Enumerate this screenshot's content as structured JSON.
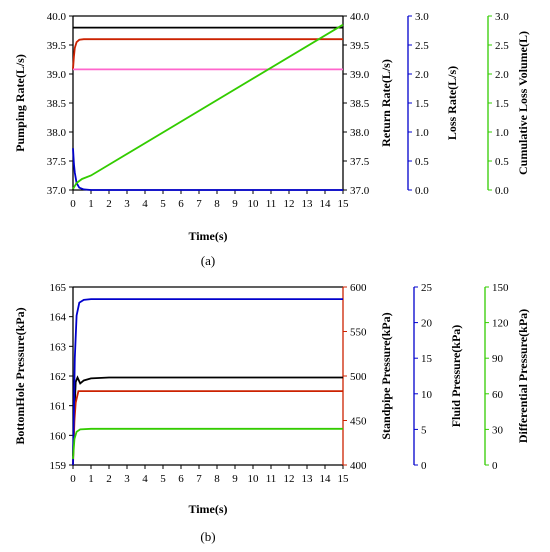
{
  "chart_data": [
    {
      "panel_label": "(a)",
      "type": "line",
      "xlabel": "Time(s)",
      "xlim": [
        0,
        15
      ],
      "xticks": [
        0,
        1,
        2,
        3,
        4,
        5,
        6,
        7,
        8,
        9,
        10,
        11,
        12,
        13,
        14,
        15
      ],
      "axes": [
        {
          "id": "pump",
          "label": "Pumping Rate(L/s)",
          "side": "left",
          "color": "#000000",
          "ylim": [
            37.0,
            40.0
          ],
          "ticks": [
            "37.0",
            "37.5",
            "38.0",
            "38.5",
            "39.0",
            "39.5",
            "40.0"
          ]
        },
        {
          "id": "ret",
          "label": "Return Rate(L/s)",
          "side": "right",
          "color": "#000000",
          "ylim": [
            37.0,
            40.0
          ],
          "ticks": [
            "37.0",
            "37.5",
            "38.0",
            "38.5",
            "39.0",
            "39.5",
            "40.0"
          ]
        },
        {
          "id": "loss",
          "label": "Loss Rate(L/s)",
          "side": "right",
          "color": "#0000cc",
          "ylim": [
            0.0,
            3.0
          ],
          "ticks": [
            "0.0",
            "0.5",
            "1.0",
            "1.5",
            "2.0",
            "2.5",
            "3.0"
          ]
        },
        {
          "id": "cum",
          "label": "Cumulative Loss Volume(L)",
          "side": "right",
          "color": "#33cc00",
          "ylim": [
            0.0,
            3.0
          ],
          "ticks": [
            "0.0",
            "0.5",
            "1.0",
            "1.5",
            "2.0",
            "2.5",
            "3.0"
          ]
        }
      ],
      "series": [
        {
          "axis": "pump",
          "color": "#000000",
          "points": [
            [
              0,
              39.8
            ],
            [
              15,
              39.8
            ]
          ]
        },
        {
          "axis": "ret",
          "color": "#cc2200",
          "points": [
            [
              0,
              39.08
            ],
            [
              0.05,
              39.3
            ],
            [
              0.1,
              39.45
            ],
            [
              0.2,
              39.55
            ],
            [
              0.35,
              39.59
            ],
            [
              0.6,
              39.6
            ],
            [
              15,
              39.6
            ]
          ]
        },
        {
          "axis": "ret",
          "color": "#ff66cc",
          "points": [
            [
              0,
              39.08
            ],
            [
              15,
              39.08
            ]
          ]
        },
        {
          "axis": "loss",
          "color": "#0000cc",
          "points": [
            [
              0,
              0.72
            ],
            [
              0.05,
              0.45
            ],
            [
              0.1,
              0.3
            ],
            [
              0.2,
              0.12
            ],
            [
              0.35,
              0.04
            ],
            [
              0.6,
              0.01
            ],
            [
              1,
              0
            ],
            [
              15,
              0
            ]
          ]
        },
        {
          "axis": "cum",
          "color": "#33cc00",
          "points": [
            [
              0,
              0.02
            ],
            [
              0.2,
              0.12
            ],
            [
              0.5,
              0.19
            ],
            [
              1,
              0.25
            ],
            [
              15,
              2.85
            ]
          ]
        }
      ]
    },
    {
      "panel_label": "(b)",
      "type": "line",
      "xlabel": "Time(s)",
      "xlim": [
        0,
        15
      ],
      "xticks": [
        0,
        1,
        2,
        3,
        4,
        5,
        6,
        7,
        8,
        9,
        10,
        11,
        12,
        13,
        14,
        15
      ],
      "axes": [
        {
          "id": "bhp",
          "label": "BottomHole Pressure(kPa)",
          "side": "left",
          "color": "#000000",
          "ylim": [
            159,
            165
          ],
          "ticks": [
            "159",
            "160",
            "161",
            "162",
            "163",
            "164",
            "165"
          ]
        },
        {
          "id": "spp",
          "label": "Standpipe Pressure(kPa)",
          "side": "right",
          "color": "#cc2200",
          "ylim": [
            400,
            600
          ],
          "ticks": [
            "400",
            "450",
            "500",
            "550",
            "600"
          ]
        },
        {
          "id": "fp",
          "label": "Fluid Pressure(kPa)",
          "side": "right",
          "color": "#0000cc",
          "ylim": [
            0,
            25
          ],
          "ticks": [
            "0",
            "5",
            "10",
            "15",
            "20",
            "25"
          ]
        },
        {
          "id": "dp",
          "label": "Differential Pressure(kPa)",
          "side": "right",
          "color": "#33cc00",
          "ylim": [
            0,
            150
          ],
          "ticks": [
            "0",
            "30",
            "60",
            "90",
            "120",
            "150"
          ]
        }
      ],
      "series": [
        {
          "axis": "bhp",
          "color": "#000000",
          "points": [
            [
              0,
              159.3
            ],
            [
              0.08,
              160.8
            ],
            [
              0.15,
              161.8
            ],
            [
              0.25,
              161.95
            ],
            [
              0.4,
              161.75
            ],
            [
              0.6,
              161.85
            ],
            [
              1,
              161.92
            ],
            [
              2,
              161.95
            ],
            [
              15,
              161.95
            ]
          ]
        },
        {
          "axis": "spp",
          "color": "#cc2200",
          "points": [
            [
              0,
              400
            ],
            [
              0.08,
              450
            ],
            [
              0.15,
              470
            ],
            [
              0.3,
              483
            ],
            [
              15,
              483
            ]
          ]
        },
        {
          "axis": "fp",
          "color": "#0000cc",
          "points": [
            [
              0,
              0
            ],
            [
              0.1,
              15
            ],
            [
              0.2,
              21
            ],
            [
              0.35,
              22.8
            ],
            [
              0.6,
              23.2
            ],
            [
              1,
              23.3
            ],
            [
              15,
              23.3
            ]
          ]
        },
        {
          "axis": "dp",
          "color": "#33cc00",
          "points": [
            [
              0,
              5
            ],
            [
              0.08,
              22
            ],
            [
              0.2,
              28
            ],
            [
              0.4,
              30
            ],
            [
              1,
              30.5
            ],
            [
              15,
              30.5
            ]
          ]
        }
      ]
    }
  ]
}
